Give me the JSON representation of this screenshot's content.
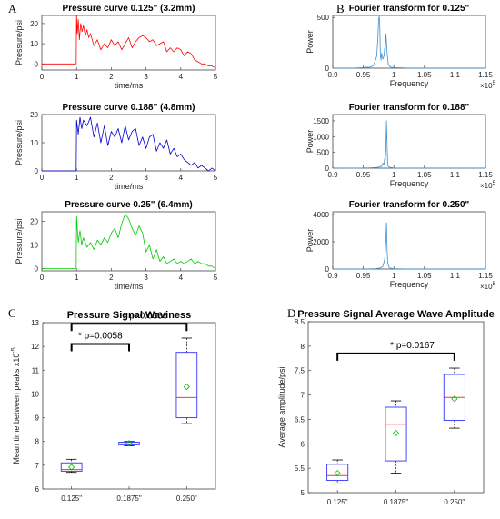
{
  "panel_letters": [
    "A",
    "B",
    "C",
    "D"
  ],
  "chart_data": [
    {
      "id": "p1",
      "type": "line",
      "panel": "A",
      "title": "Pressure curve 0.125\" (3.2mm)",
      "xlabel": "time/ms",
      "ylabel": "Pressure/psi",
      "xlim": [
        0,
        5
      ],
      "ylim": [
        -3,
        24
      ],
      "xticks": [
        0,
        1,
        2,
        3,
        4,
        5
      ],
      "yticks": [
        0,
        10,
        20
      ],
      "color": "#ff0000",
      "series": [
        {
          "x": [
            0,
            0.99,
            1.0,
            1.02,
            1.05,
            1.08,
            1.12,
            1.16,
            1.2,
            1.25,
            1.3,
            1.35,
            1.4,
            1.5,
            1.6,
            1.7,
            1.8,
            1.9,
            2.0,
            2.1,
            2.2,
            2.3,
            2.4,
            2.5,
            2.6,
            2.7,
            2.8,
            2.9,
            3.0,
            3.1,
            3.2,
            3.3,
            3.4,
            3.5,
            3.6,
            3.7,
            3.8,
            3.9,
            4.0,
            4.1,
            4.2,
            4.3,
            4.4,
            4.5,
            4.6,
            4.7,
            4.8,
            4.9,
            5.0
          ],
          "y": [
            0,
            0,
            24,
            15,
            22,
            12,
            20,
            16,
            19,
            14,
            17,
            13,
            15,
            9,
            12,
            7,
            10,
            8,
            12,
            9,
            11,
            7,
            10,
            13,
            8,
            11,
            13,
            14,
            13,
            11,
            12,
            9,
            10,
            11,
            6,
            8,
            6,
            8,
            7,
            4,
            6,
            5,
            2,
            1,
            0,
            0,
            -1,
            -1,
            -2
          ]
        }
      ]
    },
    {
      "id": "p2",
      "type": "line",
      "panel": "A",
      "title": "Pressure curve 0.188\" (4.8mm)",
      "xlabel": "time/ms",
      "ylabel": "Pressure/psi",
      "xlim": [
        0,
        5
      ],
      "ylim": [
        0,
        20
      ],
      "xticks": [
        0,
        1,
        2,
        3,
        4,
        5
      ],
      "yticks": [
        0,
        10,
        20
      ],
      "color": "#0000cc",
      "series": [
        {
          "x": [
            0,
            0.99,
            1.0,
            1.05,
            1.1,
            1.15,
            1.2,
            1.3,
            1.4,
            1.5,
            1.6,
            1.7,
            1.8,
            1.9,
            2.0,
            2.1,
            2.2,
            2.3,
            2.4,
            2.5,
            2.6,
            2.7,
            2.8,
            2.9,
            3.0,
            3.1,
            3.2,
            3.3,
            3.4,
            3.5,
            3.6,
            3.7,
            3.8,
            3.9,
            4.0,
            4.1,
            4.2,
            4.3,
            4.4,
            4.5,
            4.6,
            4.7,
            4.8,
            4.9,
            5.0
          ],
          "y": [
            0,
            0,
            18,
            13,
            19,
            15,
            18,
            16,
            19,
            12,
            17,
            10,
            16,
            9,
            14,
            12,
            15,
            10,
            16,
            11,
            14,
            15,
            9,
            12,
            8,
            12,
            13,
            7,
            10,
            8,
            11,
            6,
            8,
            5,
            6,
            4,
            3,
            2,
            3,
            1,
            2,
            1,
            0,
            1,
            0
          ]
        }
      ]
    },
    {
      "id": "p3",
      "type": "line",
      "panel": "A",
      "title": "Pressure curve 0.25\" (6.4mm)",
      "xlabel": "time/ms",
      "ylabel": "Pressure/psi",
      "xlim": [
        0,
        5
      ],
      "ylim": [
        -1,
        24
      ],
      "xticks": [
        0,
        1,
        2,
        3,
        4,
        5
      ],
      "yticks": [
        0,
        10,
        20
      ],
      "color": "#00cc00",
      "series": [
        {
          "x": [
            0,
            0.99,
            1.0,
            1.05,
            1.1,
            1.15,
            1.2,
            1.3,
            1.4,
            1.5,
            1.6,
            1.7,
            1.8,
            1.9,
            2.0,
            2.1,
            2.2,
            2.3,
            2.4,
            2.5,
            2.6,
            2.7,
            2.8,
            2.9,
            3.0,
            3.1,
            3.2,
            3.3,
            3.4,
            3.5,
            3.6,
            3.7,
            3.8,
            3.9,
            4.0,
            4.1,
            4.2,
            4.3,
            4.4,
            4.5,
            4.6,
            4.7,
            4.8,
            4.9,
            5.0
          ],
          "y": [
            0,
            0,
            22,
            11,
            16,
            10,
            13,
            9,
            11,
            8,
            12,
            10,
            13,
            11,
            15,
            17,
            13,
            19,
            23,
            21,
            17,
            14,
            18,
            15,
            7,
            10,
            4,
            8,
            3,
            5,
            2,
            3,
            4,
            2,
            3,
            2,
            3,
            4,
            2,
            3,
            2,
            2,
            1,
            1,
            0
          ]
        }
      ]
    },
    {
      "id": "f1",
      "type": "line",
      "panel": "B",
      "title": "Fourier transform for 0.125\"",
      "xlabel": "Frequency",
      "ylabel": "Power",
      "x_exponent": "5",
      "xlim": [
        0.9,
        1.15
      ],
      "ylim": [
        0,
        520
      ],
      "xticks": [
        0.9,
        0.95,
        1,
        1.05,
        1.1,
        1.15
      ],
      "yticks": [
        0,
        500
      ],
      "color": "#3d8fd1",
      "series": [
        {
          "x": [
            0.9,
            0.93,
            0.95,
            0.955,
            0.96,
            0.965,
            0.967,
            0.97,
            0.972,
            0.974,
            0.975,
            0.976,
            0.977,
            0.978,
            0.979,
            0.98,
            0.982,
            0.984,
            0.985,
            0.986,
            0.987,
            0.988,
            0.989,
            0.99,
            0.991,
            0.993,
            0.995,
            1.0,
            1.03,
            1.15
          ],
          "y": [
            0,
            0,
            5,
            10,
            8,
            20,
            35,
            80,
            120,
            300,
            480,
            510,
            420,
            120,
            80,
            150,
            90,
            120,
            200,
            180,
            340,
            260,
            150,
            90,
            40,
            20,
            10,
            5,
            0,
            0
          ]
        }
      ]
    },
    {
      "id": "f2",
      "type": "line",
      "panel": "B",
      "title": "Fourier transform for 0.188\"",
      "xlabel": "Frequency",
      "ylabel": "Power",
      "x_exponent": "5",
      "xlim": [
        0.9,
        1.15
      ],
      "ylim": [
        0,
        1700
      ],
      "xticks": [
        0.9,
        0.95,
        1,
        1.05,
        1.1,
        1.15
      ],
      "yticks": [
        0,
        500,
        1000,
        1500
      ],
      "color": "#3d8fd1",
      "series": [
        {
          "x": [
            0.9,
            0.94,
            0.96,
            0.97,
            0.975,
            0.978,
            0.98,
            0.982,
            0.984,
            0.985,
            0.986,
            0.987,
            0.988,
            0.989,
            0.99,
            0.992,
            0.995,
            1.0,
            1.03,
            1.15
          ],
          "y": [
            0,
            0,
            10,
            20,
            30,
            60,
            50,
            160,
            110,
            300,
            240,
            650,
            1500,
            700,
            90,
            40,
            20,
            5,
            0,
            0
          ]
        }
      ]
    },
    {
      "id": "f3",
      "type": "line",
      "panel": "B",
      "title": "Fourier transform for 0.250\"",
      "xlabel": "Frequency",
      "ylabel": "Power",
      "x_exponent": "5",
      "xlim": [
        0.9,
        1.15
      ],
      "ylim": [
        0,
        4200
      ],
      "xticks": [
        0.9,
        0.95,
        1,
        1.05,
        1.1,
        1.15
      ],
      "yticks": [
        0,
        2000,
        4000
      ],
      "color": "#3d8fd1",
      "series": [
        {
          "x": [
            0.9,
            0.95,
            0.97,
            0.978,
            0.982,
            0.985,
            0.986,
            0.987,
            0.988,
            0.989,
            0.99,
            0.992,
            0.995,
            1.0,
            1.03,
            1.15
          ],
          "y": [
            0,
            0,
            30,
            80,
            200,
            700,
            1300,
            2200,
            3400,
            1500,
            400,
            150,
            60,
            20,
            0,
            0
          ]
        }
      ]
    },
    {
      "id": "box_c",
      "type": "box",
      "panel": "C",
      "title": "Pressure Signal Waviness",
      "ylabel": "Mean time between peaks x10",
      "ylabel_exponent": "-5",
      "categories": [
        "0.125\"",
        "0.1875\"",
        "0.250\""
      ],
      "ylim": [
        6,
        13
      ],
      "yticks": [
        6,
        7,
        8,
        9,
        10,
        11,
        12,
        13
      ],
      "boxes": [
        {
          "whisker_low": 6.7,
          "q1": 6.75,
          "median": 6.82,
          "q3": 7.1,
          "whisker_high": 7.25,
          "mean": 6.92
        },
        {
          "whisker_low": 7.82,
          "q1": 7.86,
          "median": 7.9,
          "q3": 7.97,
          "whisker_high": 8.0,
          "mean": 7.92
        },
        {
          "whisker_low": 8.75,
          "q1": 9.0,
          "median": 9.85,
          "q3": 11.75,
          "whisker_high": 12.35,
          "mean": 10.3
        }
      ],
      "annotations": [
        {
          "from": 0,
          "to": 1,
          "level": 12.1,
          "label": "* p=0.0058"
        },
        {
          "from": 0,
          "to": 2,
          "level": 12.95,
          "label": "* p=0.0336"
        }
      ]
    },
    {
      "id": "box_d",
      "type": "box",
      "panel": "D",
      "title": "Pressure Signal Average Wave Amplitude",
      "ylabel": "Average amplitude/psi",
      "categories": [
        "0.125\"",
        "0.1875\"",
        "0.250\""
      ],
      "ylim": [
        5,
        8.5
      ],
      "yticks": [
        5,
        5.5,
        6,
        6.5,
        7,
        7.5,
        8,
        8.5
      ],
      "boxes": [
        {
          "whisker_low": 5.18,
          "q1": 5.25,
          "median": 5.35,
          "q3": 5.58,
          "whisker_high": 5.67,
          "mean": 5.4
        },
        {
          "whisker_low": 5.4,
          "q1": 5.65,
          "median": 6.4,
          "q3": 6.75,
          "whisker_high": 6.88,
          "mean": 6.22
        },
        {
          "whisker_low": 6.32,
          "q1": 6.48,
          "median": 6.95,
          "q3": 7.42,
          "whisker_high": 7.55,
          "mean": 6.92
        }
      ],
      "annotations": [
        {
          "from": 0,
          "to": 2,
          "level": 7.85,
          "label": "* p=0.0167"
        }
      ]
    }
  ]
}
